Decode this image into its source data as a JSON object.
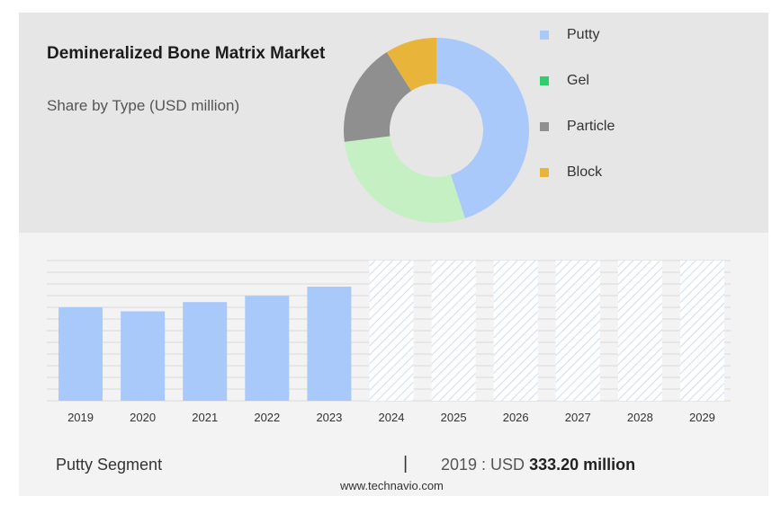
{
  "header": {
    "title": "Demineralized Bone Matrix Market",
    "subtitle": "Share by Type (USD million)"
  },
  "legend": [
    {
      "label": "Putty",
      "color": "#a9c9fb"
    },
    {
      "label": "Gel",
      "color": "#2fcf6d"
    },
    {
      "label": "Particle",
      "color": "#909090"
    },
    {
      "label": "Block",
      "color": "#e8b53a"
    }
  ],
  "footer": {
    "segment": "Putty Segment",
    "separator": "|",
    "year_label": "2019 : USD",
    "value": "333.20 million",
    "source": "www.technavio.com"
  },
  "chart_data": [
    {
      "type": "pie",
      "title": "Demineralized Bone Matrix Market",
      "subtitle": "Share by Type (USD million)",
      "categories": [
        "Putty",
        "Gel",
        "Particle",
        "Block"
      ],
      "values": [
        45,
        28,
        18,
        9
      ],
      "colors": [
        "#a9c9fb",
        "#c5f0c4",
        "#8f8f8f",
        "#e8b53a"
      ],
      "donut": true
    },
    {
      "type": "bar",
      "categories": [
        "2019",
        "2020",
        "2021",
        "2022",
        "2023",
        "2024",
        "2025",
        "2026",
        "2027",
        "2028",
        "2029"
      ],
      "values": [
        333.2,
        319,
        352,
        374,
        407,
        null,
        null,
        null,
        null,
        null,
        null
      ],
      "forecast_years": [
        "2024",
        "2025",
        "2026",
        "2027",
        "2028",
        "2029"
      ],
      "series": [
        {
          "name": "Putty Segment",
          "values": [
            333.2,
            319,
            352,
            374,
            407,
            null,
            null,
            null,
            null,
            null,
            null
          ]
        }
      ],
      "ylim": [
        0,
        500
      ],
      "grid": true,
      "bar_color": "#a9c9fb"
    }
  ]
}
